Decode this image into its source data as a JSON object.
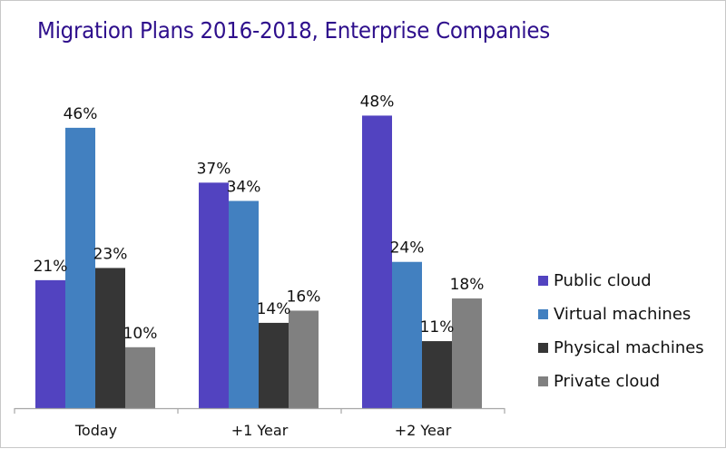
{
  "chart_data": {
    "type": "bar",
    "title": "Migration Plans 2016-2018, Enterprise Companies",
    "xlabel": "",
    "ylabel": "",
    "categories": [
      "Today",
      "+1 Year",
      "+2 Year"
    ],
    "series": [
      {
        "name": "Public cloud",
        "color": "#5243c0",
        "values": [
          21,
          37,
          48
        ],
        "labels": [
          "21%",
          "37%",
          "48%"
        ]
      },
      {
        "name": "Virtual machines",
        "color": "#4280c0",
        "values": [
          46,
          34,
          24
        ],
        "labels": [
          "46%",
          "34%",
          "24%"
        ]
      },
      {
        "name": "Physical machines",
        "color": "#363636",
        "values": [
          23,
          14,
          11
        ],
        "labels": [
          "23%",
          "14%",
          "11%"
        ]
      },
      {
        "name": "Private cloud",
        "color": "#808080",
        "values": [
          10,
          16,
          18
        ],
        "labels": [
          "10%",
          "16%",
          "18%"
        ]
      }
    ],
    "ylim": [
      0,
      50
    ],
    "grid": false,
    "legend_position": "right",
    "value_unit": "%"
  }
}
